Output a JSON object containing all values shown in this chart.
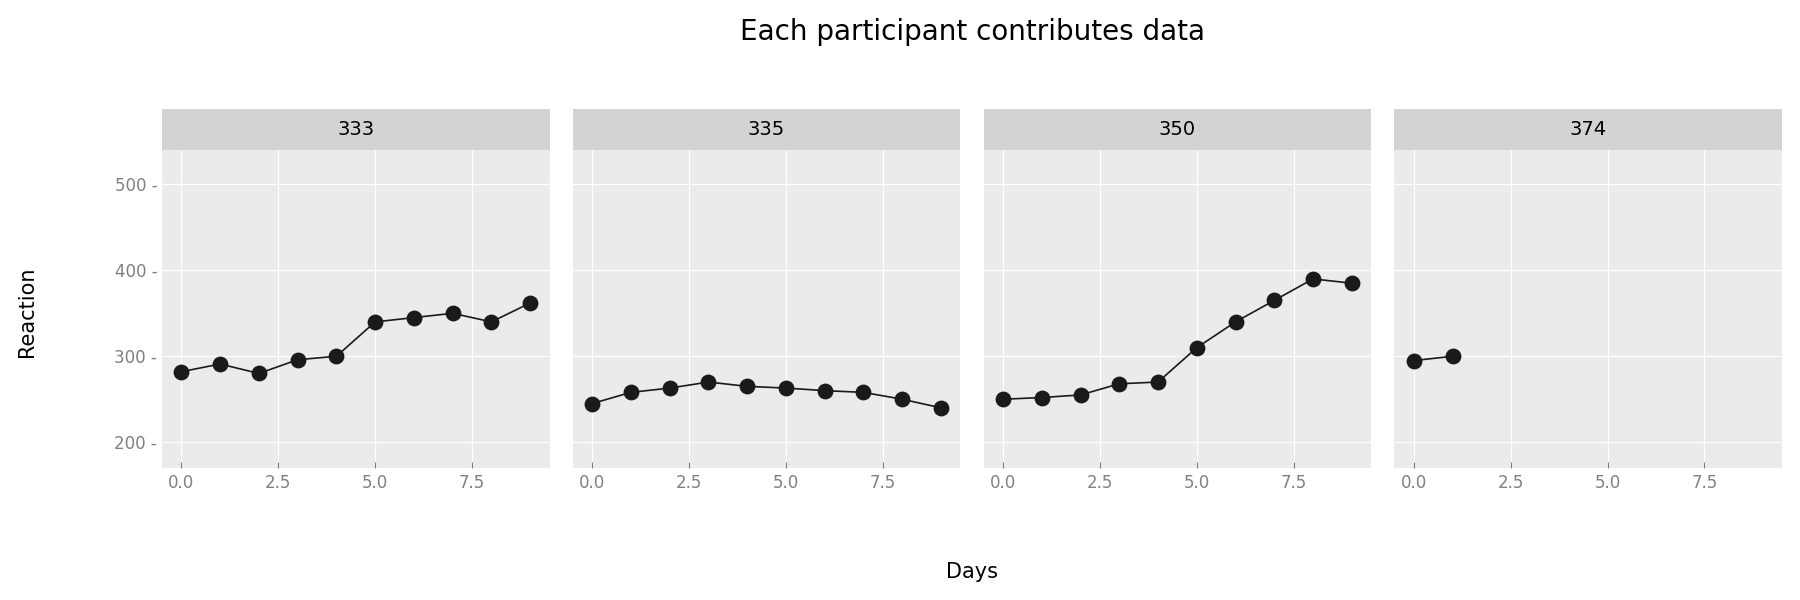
{
  "title": "Each participant contributes data",
  "xlabel": "Days",
  "ylabel": "Reaction",
  "panels": [
    {
      "label": "333",
      "days": [
        0,
        1,
        2,
        3,
        4,
        5,
        6,
        7,
        8,
        9
      ],
      "reaction": [
        282,
        291,
        280,
        296,
        300,
        340,
        345,
        350,
        340,
        362
      ]
    },
    {
      "label": "335",
      "days": [
        0,
        1,
        2,
        3,
        4,
        5,
        6,
        7,
        8,
        9
      ],
      "reaction": [
        245,
        258,
        263,
        270,
        265,
        263,
        260,
        258,
        250,
        240
      ]
    },
    {
      "label": "350",
      "days": [
        0,
        1,
        2,
        3,
        4,
        5,
        6,
        7,
        8,
        9
      ],
      "reaction": [
        250,
        252,
        255,
        268,
        270,
        310,
        340,
        365,
        390,
        385
      ]
    },
    {
      "label": "374",
      "days": [
        0,
        1
      ],
      "reaction": [
        295,
        300
      ]
    }
  ],
  "ylim": [
    170,
    540
  ],
  "yticks": [
    200,
    300,
    400,
    500
  ],
  "ytick_labels": [
    "200 -",
    "300 -",
    "400 -",
    "500 -"
  ],
  "xticks": [
    0.0,
    2.5,
    5.0,
    7.5
  ],
  "xtick_labels": [
    "0.0",
    "2.5",
    "5.0",
    "7.5"
  ],
  "xlim": [
    -0.5,
    9.5
  ],
  "bg_color": "#EBEBEB",
  "strip_color": "#D3D3D3",
  "line_color": "#1a1a1a",
  "point_color": "#1a1a1a",
  "grid_color": "#ffffff",
  "tick_color": "#808080",
  "title_fontsize": 20,
  "axis_label_fontsize": 15,
  "tick_fontsize": 12,
  "strip_fontsize": 14,
  "point_size": 6,
  "line_width": 1.2
}
